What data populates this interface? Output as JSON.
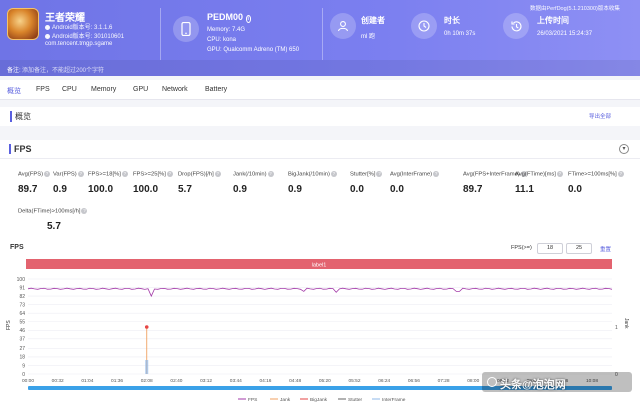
{
  "app": {
    "name": "王者荣耀",
    "android_version": "Android版本号: 3.1.1.6",
    "android_build": "Android版本号: 301010601",
    "package": "com.tencent.tmgp.sgame"
  },
  "device": {
    "name": "PEDM00",
    "memory": "Memory: 7.4G",
    "cpu": "CPU: kona",
    "gpu": "GPU: Qualcomm Adreno (TM) 650"
  },
  "meta": {
    "creator_title": "创建者",
    "creator_value": "ml 跑",
    "duration_title": "时长",
    "duration_value": "0h 10m 37s",
    "upload_title": "上传时间",
    "upload_value": "26/03/2021 15:24:37",
    "perfdog_version": "数据由PerfDog(5.1.210300)版本收集"
  },
  "note": {
    "label": "备注:",
    "placeholder": "添加备注，不能超过200个字符"
  },
  "tabs": [
    "概览",
    "FPS",
    "CPU",
    "Memory",
    "GPU",
    "Network",
    "Battery"
  ],
  "overview": {
    "title": "概览",
    "export": "导出全部"
  },
  "fps_section": {
    "title": "FPS",
    "collapse": "▾",
    "stats_row1": [
      {
        "label": "Avg(FPS)",
        "value": "89.7"
      },
      {
        "label": "Var(FPS)",
        "value": "0.9"
      },
      {
        "label": "FPS>=18[%]",
        "value": "100.0"
      },
      {
        "label": "FPS>=25[%]",
        "value": "100.0"
      },
      {
        "label": "Drop(FPS)[/h]",
        "value": "5.7"
      },
      {
        "label": "Jank(/10min)",
        "value": "0.9"
      },
      {
        "label": "BigJank(/10min)",
        "value": "0.9"
      },
      {
        "label": "Stutter[%]",
        "value": "0.0"
      },
      {
        "label": "Avg(InterFrame)",
        "value": "0.0"
      },
      {
        "label": "Avg(FPS+InterFrame)",
        "value": "89.7"
      },
      {
        "label": "Avg(FTime)[ms]",
        "value": "11.1"
      },
      {
        "label": "FTime>=100ms[%]",
        "value": "0.0"
      }
    ],
    "stats_row2": [
      {
        "label": "Delta(FTime)>100ms[/h]",
        "value": "5.7"
      }
    ]
  },
  "chart_controls": {
    "title": "FPS",
    "threshold_label": "FPS(>=)",
    "threshold_a": "18",
    "threshold_b": "25",
    "reset": "重置",
    "label_bar": "label1"
  },
  "chart_data": {
    "type": "line",
    "yticks": [
      "100",
      "91",
      "82",
      "73",
      "64",
      "55",
      "46",
      "37",
      "27",
      "18",
      "9",
      "0"
    ],
    "ylim": [
      0,
      100
    ],
    "ylabel": "FPS",
    "y2ticks": [
      "1",
      "0"
    ],
    "y2label": "Jank",
    "xticks": [
      "00:00",
      "00:32",
      "01:04",
      "01:36",
      "02:08",
      "02:40",
      "03:12",
      "03:44",
      "04:16",
      "04:48",
      "05:20",
      "05:52",
      "06:24",
      "06:56",
      "07:28",
      "08:00",
      "08:32",
      "09:04",
      "09:36",
      "10:08"
    ],
    "series": [
      {
        "name": "FPS",
        "color": "#a33aa8",
        "values_note_mean": 89.7
      },
      {
        "name": "Jank",
        "color": "#f0a060"
      },
      {
        "name": "BigJank",
        "color": "#e64646"
      },
      {
        "name": "Stutter",
        "color": "#666666"
      },
      {
        "name": "InterFrame",
        "color": "#8fb8e8"
      }
    ],
    "fps_dips": [
      {
        "x": "02:08",
        "value": 82
      },
      {
        "x": "04:48",
        "value": 87
      },
      {
        "x": "05:20",
        "value": 86
      },
      {
        "x": "07:28",
        "value": 87
      }
    ],
    "bigjank_spike": {
      "x": "02:08",
      "value": 1
    }
  },
  "colors": {
    "accent": "#5a60df",
    "header_start": "#6f74e6",
    "label_bar": "#e3636f"
  },
  "watermark": "头条@泡泡网"
}
